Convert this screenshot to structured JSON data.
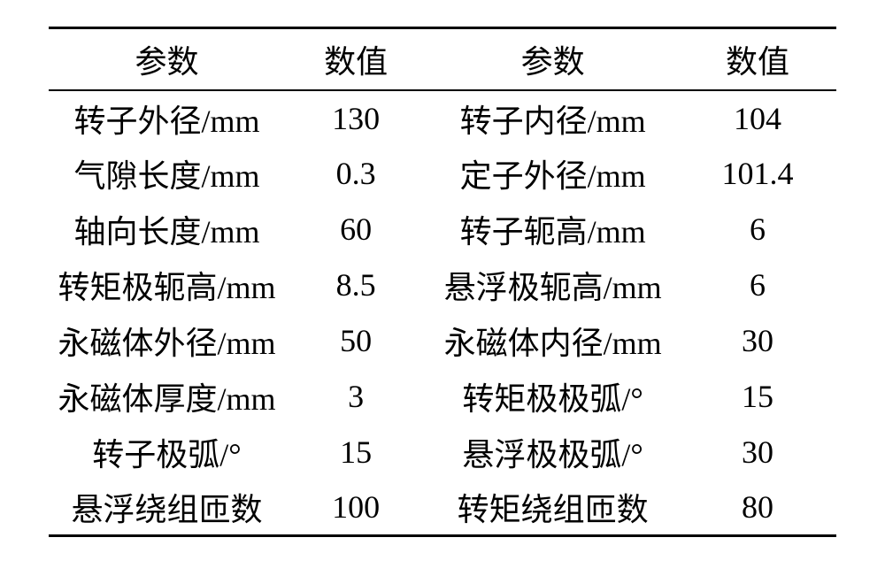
{
  "table": {
    "type": "table",
    "background_color": "#ffffff",
    "text_color": "#000000",
    "header_fontsize": 36,
    "body_fontsize": 36,
    "border_top_width": 3,
    "header_rule_width": 2,
    "border_bottom_width": 3,
    "columns": [
      {
        "key": "param1",
        "label": "参数",
        "align": "center",
        "width_pct": 30
      },
      {
        "key": "value1",
        "label": "数值",
        "align": "center",
        "width_pct": 18
      },
      {
        "key": "param2",
        "label": "参数",
        "align": "center",
        "width_pct": 32
      },
      {
        "key": "value2",
        "label": "数值",
        "align": "center",
        "width_pct": 20
      }
    ],
    "rows": [
      {
        "param1": "转子外径/mm",
        "value1": "130",
        "param2": "转子内径/mm",
        "value2": "104"
      },
      {
        "param1": "气隙长度/mm",
        "value1": "0.3",
        "param2": "定子外径/mm",
        "value2": "101.4"
      },
      {
        "param1": "轴向长度/mm",
        "value1": "60",
        "param2": "转子轭高/mm",
        "value2": "6"
      },
      {
        "param1": "转矩极轭高/mm",
        "value1": "8.5",
        "param2": "悬浮极轭高/mm",
        "value2": "6"
      },
      {
        "param1": "永磁体外径/mm",
        "value1": "50",
        "param2": "永磁体内径/mm",
        "value2": "30"
      },
      {
        "param1": "永磁体厚度/mm",
        "value1": "3",
        "param2": "转矩极极弧/°",
        "value2": "15"
      },
      {
        "param1": "转子极弧/°",
        "value1": "15",
        "param2": "悬浮极极弧/°",
        "value2": "30"
      },
      {
        "param1": "悬浮绕组匝数",
        "value1": "100",
        "param2": "转矩绕组匝数",
        "value2": "80"
      }
    ]
  }
}
